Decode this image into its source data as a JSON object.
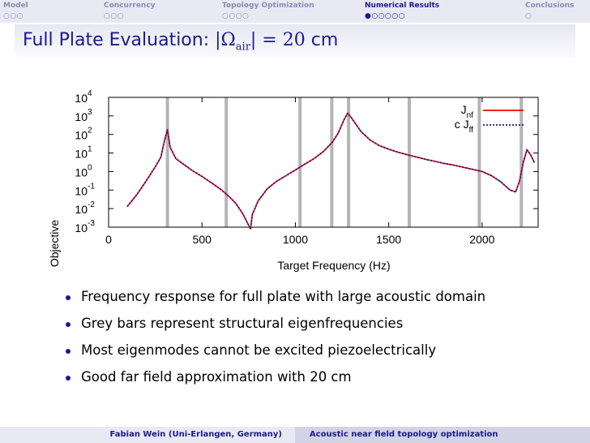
{
  "nav": {
    "sections": [
      {
        "label": "Model",
        "dots": "○○○",
        "active": false
      },
      {
        "label": "Concurrency",
        "dots": "○○○",
        "active": false
      },
      {
        "label": "Topology Optimization",
        "dots": "○○○○",
        "active": false
      },
      {
        "label": "Numerical Results",
        "dots": "●○○○○○",
        "active": true
      },
      {
        "label": "Conclusions",
        "dots": "○",
        "active": false
      }
    ]
  },
  "title": {
    "prefix": "Full Plate Evaluation: ",
    "math_open": "|Ω",
    "math_sub": "air",
    "math_close": "| = 20",
    "unit": " cm"
  },
  "chart_data": {
    "type": "line",
    "xlabel": "Target Frequency (Hz)",
    "ylabel": "Objective",
    "xlim": [
      0,
      2300
    ],
    "ylim_log10": [
      -3,
      4
    ],
    "y_scale": "log",
    "x_ticks": [
      "0",
      "500",
      "1000",
      "1500",
      "2000"
    ],
    "y_ticks": [
      {
        "base": "10",
        "exp": "-3"
      },
      {
        "base": "10",
        "exp": "-2"
      },
      {
        "base": "10",
        "exp": "-1"
      },
      {
        "base": "10",
        "exp": "0"
      },
      {
        "base": "10",
        "exp": "1"
      },
      {
        "base": "10",
        "exp": "2"
      },
      {
        "base": "10",
        "exp": "3"
      },
      {
        "base": "10",
        "exp": "4"
      }
    ],
    "legend_position": "top-right",
    "eigenfrequencies": [
      315,
      630,
      1025,
      1195,
      1285,
      1610,
      1985,
      2210
    ],
    "x": [
      100,
      150,
      200,
      250,
      280,
      300,
      315,
      330,
      360,
      400,
      450,
      500,
      550,
      600,
      640,
      680,
      700,
      720,
      740,
      760,
      770,
      785,
      800,
      850,
      900,
      950,
      1000,
      1050,
      1100,
      1150,
      1200,
      1230,
      1260,
      1280,
      1300,
      1350,
      1400,
      1450,
      1500,
      1550,
      1600,
      1650,
      1700,
      1750,
      1800,
      1850,
      1900,
      1950,
      2000,
      2050,
      2100,
      2150,
      2180,
      2200,
      2220,
      2240,
      2260,
      2280
    ],
    "series": [
      {
        "name": "J_nf",
        "legend_prefix": "",
        "legend_main": "J",
        "legend_sub": "nf",
        "color": "#ff0000",
        "dash": "solid",
        "values": [
          0.013,
          0.055,
          0.3,
          1.8,
          6,
          50,
          180,
          20,
          5,
          2.5,
          1.1,
          0.55,
          0.25,
          0.11,
          0.05,
          0.02,
          0.01,
          0.005,
          0.002,
          0.0008,
          0.005,
          0.011,
          0.025,
          0.12,
          0.3,
          0.6,
          1.2,
          2.5,
          5,
          12,
          40,
          120,
          600,
          1400,
          800,
          150,
          50,
          25,
          16,
          11,
          8,
          6,
          4.5,
          3.5,
          2.7,
          2.2,
          1.7,
          1.3,
          1,
          0.6,
          0.28,
          0.1,
          0.08,
          0.3,
          3,
          15,
          8,
          3
        ]
      },
      {
        "name": "c J_ff",
        "legend_prefix": "c ",
        "legend_main": "J",
        "legend_sub": "ff",
        "color": "#1a1a8c",
        "dash": "dotted",
        "values": [
          0.013,
          0.055,
          0.3,
          1.8,
          6,
          50,
          180,
          20,
          5,
          2.5,
          1.1,
          0.55,
          0.25,
          0.11,
          0.05,
          0.02,
          0.01,
          0.005,
          0.002,
          0.0008,
          0.005,
          0.011,
          0.025,
          0.12,
          0.3,
          0.6,
          1.2,
          2.5,
          5,
          12,
          40,
          120,
          600,
          1400,
          800,
          150,
          50,
          25,
          16,
          11,
          8,
          6,
          4.5,
          3.5,
          2.7,
          2.2,
          1.7,
          1.3,
          1,
          0.6,
          0.28,
          0.1,
          0.08,
          0.3,
          3,
          15,
          8,
          3
        ]
      }
    ]
  },
  "bullets": [
    "Frequency response for full plate with large acoustic domain",
    "Grey bars represent structural eigenfrequencies",
    "Most eigenmodes cannot be excited piezoelectrically",
    "Good far field approximation with 20 cm"
  ],
  "footer": {
    "author": "Fabian Wein (Uni-Erlangen, Germany)",
    "talk_title": "Acoustic near field topology optimization"
  }
}
